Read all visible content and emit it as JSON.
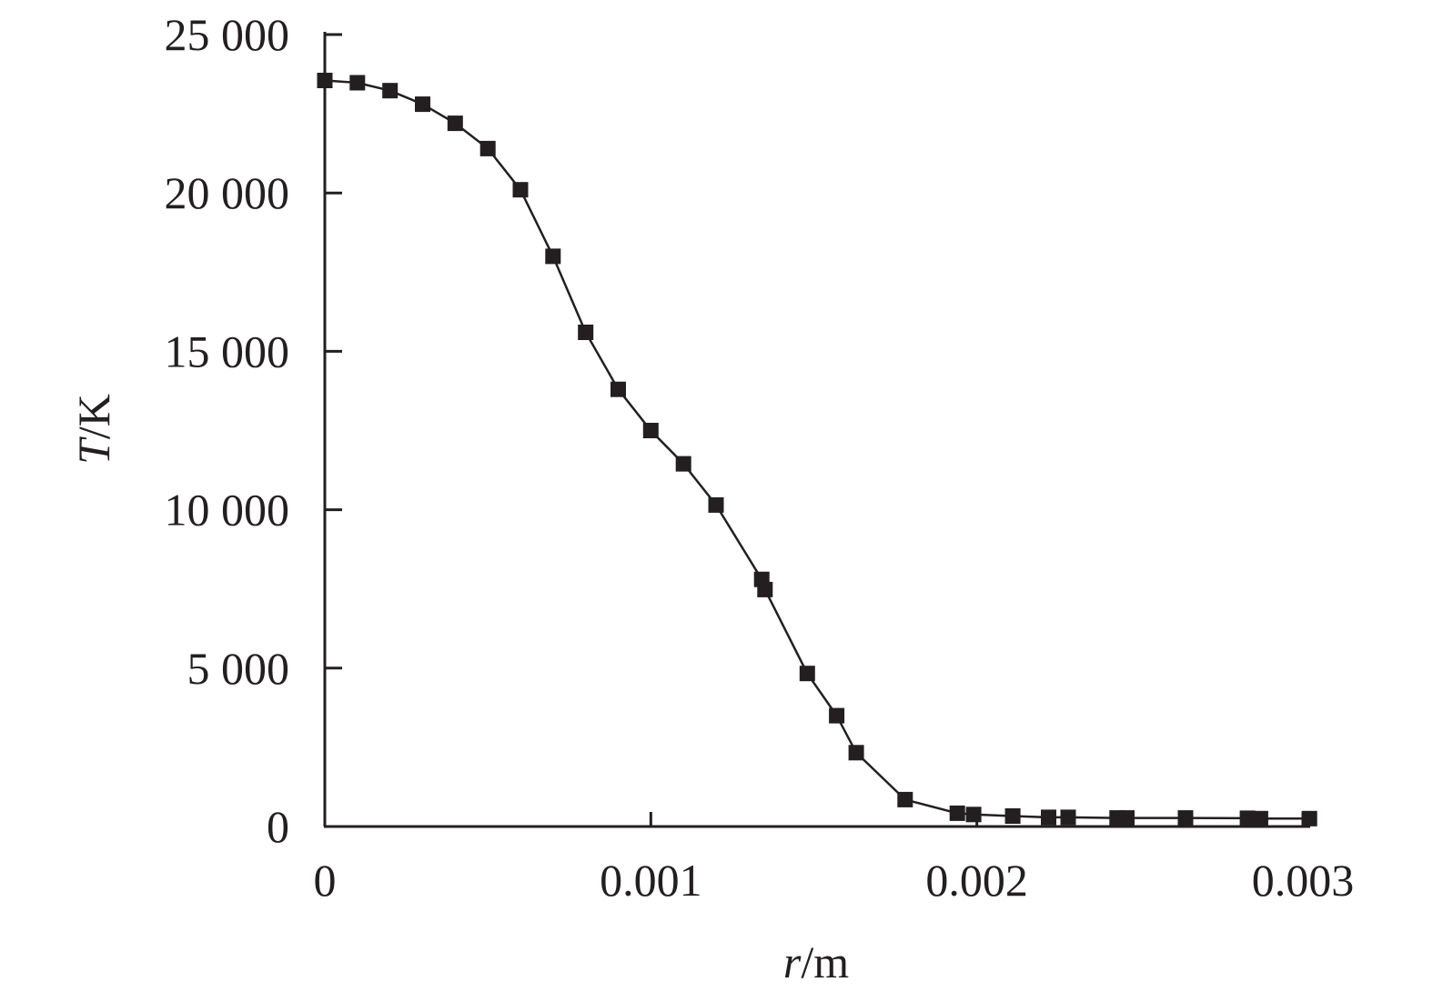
{
  "chart_data": {
    "type": "line",
    "title": "",
    "xlabel_var": "r",
    "xlabel_unit": "/m",
    "ylabel_var": "T",
    "ylabel_unit": "/K",
    "xlim": [
      0,
      0.003
    ],
    "ylim": [
      0,
      25000
    ],
    "x_ticks": [
      0,
      0.001,
      0.002,
      0.003
    ],
    "x_tick_labels": [
      "0",
      "0.001",
      "0.002",
      "0.003"
    ],
    "y_ticks": [
      0,
      5000,
      10000,
      15000,
      20000,
      25000
    ],
    "y_tick_labels": [
      "0",
      "5 000",
      "10 000",
      "15 000",
      "20 000",
      "25 000"
    ],
    "grid": false,
    "legend": "none",
    "marker": "square",
    "color": "#231f20",
    "series": [
      {
        "x": [
          0.0,
          0.0001,
          0.0002,
          0.0003,
          0.0004,
          0.0005,
          0.0006,
          0.0007,
          0.0008,
          0.0009,
          0.001,
          0.0011,
          0.0012,
          0.00134,
          0.00135,
          0.00148,
          0.00157,
          0.00163,
          0.00178,
          0.00194,
          0.00199,
          0.00211,
          0.00222,
          0.00228,
          0.00243,
          0.00246,
          0.00264,
          0.00283,
          0.00287,
          0.00302
        ],
        "y": [
          23550,
          23480,
          23230,
          22800,
          22200,
          21400,
          20100,
          18000,
          15600,
          13800,
          12500,
          11450,
          10150,
          7800,
          7480,
          4830,
          3500,
          2330,
          850,
          420,
          380,
          330,
          290,
          290,
          270,
          270,
          270,
          260,
          250,
          250
        ]
      }
    ]
  }
}
